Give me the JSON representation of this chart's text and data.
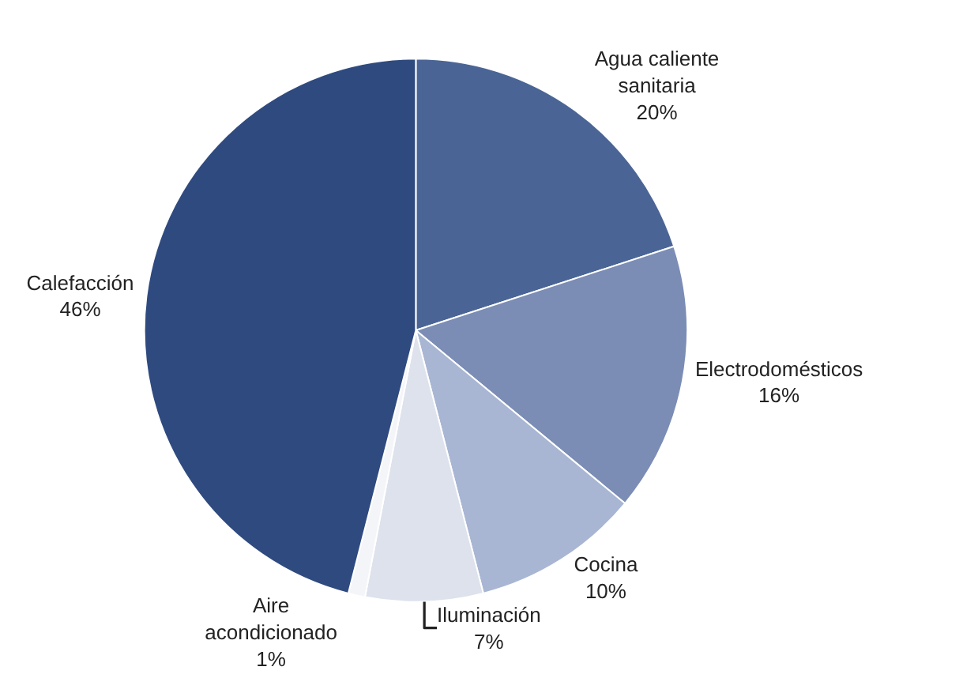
{
  "chart_data": {
    "type": "pie",
    "categories": [
      "Agua caliente sanitaria",
      "Electrodomésticos",
      "Cocina",
      "Iluminación",
      "Aire acondicionado",
      "Calefacción"
    ],
    "values": [
      20,
      16,
      10,
      7,
      1,
      46
    ],
    "value_labels": [
      "20%",
      "16%",
      "10%",
      "7%",
      "1%",
      "46%"
    ],
    "colors": [
      "#4a6595",
      "#7b8db5",
      "#a8b6d3",
      "#dde2ec",
      "#f4f5f8",
      "#2f4a7f"
    ],
    "legend": false
  }
}
